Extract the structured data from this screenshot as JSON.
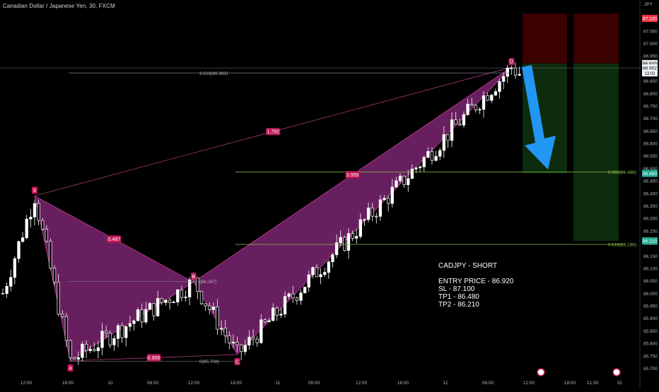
{
  "header": {
    "symbol_title": "Canadian Dollar / Japanese Yen, 30, FXCM",
    "currency": "JPY"
  },
  "colors": {
    "background": "#000000",
    "candle_up": "#ffffff",
    "candle_down": "#000000",
    "candle_outline": "#ffffff",
    "harmonic_fill": "#7a2470",
    "harmonic_line": "#c2418f",
    "point_label_bg": "#c2185b",
    "fib_line": "#8bc34a",
    "projection_line": "#787b86",
    "arrow": "#2196f3",
    "stop_zone": "#3b0000",
    "target_zone": "#0d2b0d",
    "axis_text": "#b2b5be",
    "current_price_bg": "#f0f3fa",
    "sl_badge_bg": "#f23645",
    "tp_badge_bg": "#22ab94"
  },
  "chart_data": {
    "type": "candlestick",
    "title": "Canadian Dollar / Japanese Yen, 30, FXCM",
    "ylim": [
      85.69,
      87.14
    ],
    "y_ticks": [
      "87.050",
      "87.000",
      "86.950",
      "86.900",
      "86.850",
      "86.800",
      "86.750",
      "86.700",
      "86.650",
      "86.600",
      "86.550",
      "86.500",
      "86.450",
      "86.400",
      "86.350",
      "86.300",
      "86.250",
      "86.200",
      "86.150",
      "86.100",
      "86.050",
      "86.000",
      "85.950",
      "85.900",
      "85.850",
      "85.800",
      "85.750",
      "85.700"
    ],
    "x_ticks": [
      "12:00",
      "18:00",
      "10",
      "06:00",
      "12:00",
      "18:00",
      "11",
      "06:00",
      "12:00",
      "18:00",
      "12",
      "06:00",
      "12:00",
      "18:00",
      "21:30",
      "15"
    ],
    "pattern": {
      "points": [
        {
          "label": "X",
          "bar": 8,
          "price": 86.39
        },
        {
          "label": "A",
          "bar": 17,
          "price": 85.73
        },
        {
          "label": "B",
          "bar": 48,
          "price": 86.045
        },
        {
          "label": "C",
          "bar": 59,
          "price": 85.755
        },
        {
          "label": "D",
          "bar": 128,
          "price": 86.905
        }
      ],
      "ratios": [
        {
          "text": "0.487",
          "between": "XB"
        },
        {
          "text": "0.906",
          "between": "AC"
        },
        {
          "text": "3.955",
          "between": "BD"
        },
        {
          "text": "1.792",
          "between": "XD"
        }
      ],
      "levels": [
        {
          "text": "3.618(86.882)",
          "price": 86.882,
          "kind": "projection"
        },
        {
          "text": "(86.047)",
          "price": 86.047,
          "kind": "projection"
        },
        {
          "text": "0(85.728)",
          "price": 85.728,
          "kind": "projection"
        },
        {
          "text": "0.382(86.486)",
          "price": 86.486,
          "kind": "fib"
        },
        {
          "text": "0.618(86.196)",
          "price": 86.196,
          "kind": "fib"
        }
      ]
    },
    "trade": {
      "direction": "short",
      "entry": 86.92,
      "stop_loss": 87.1,
      "take_profit_1": 86.48,
      "take_profit_2": 86.21,
      "current_price": "86.902",
      "countdown": "13:02"
    },
    "price_badges": [
      {
        "text": "87.100",
        "price": 87.1,
        "kind": "sl"
      },
      {
        "text": "86.920",
        "price": 86.92,
        "kind": "entry"
      },
      {
        "text": "86.480",
        "price": 86.48,
        "kind": "tp"
      },
      {
        "text": "86.210",
        "price": 86.21,
        "kind": "tp"
      }
    ]
  },
  "note": {
    "title": "CADJPY - SHORT",
    "entry": "ENTRY PRICE - 86.920",
    "sl": "SL - 87.100",
    "tp1": "TP1 - 86.480",
    "tp2": "TP2 - 86.210"
  }
}
